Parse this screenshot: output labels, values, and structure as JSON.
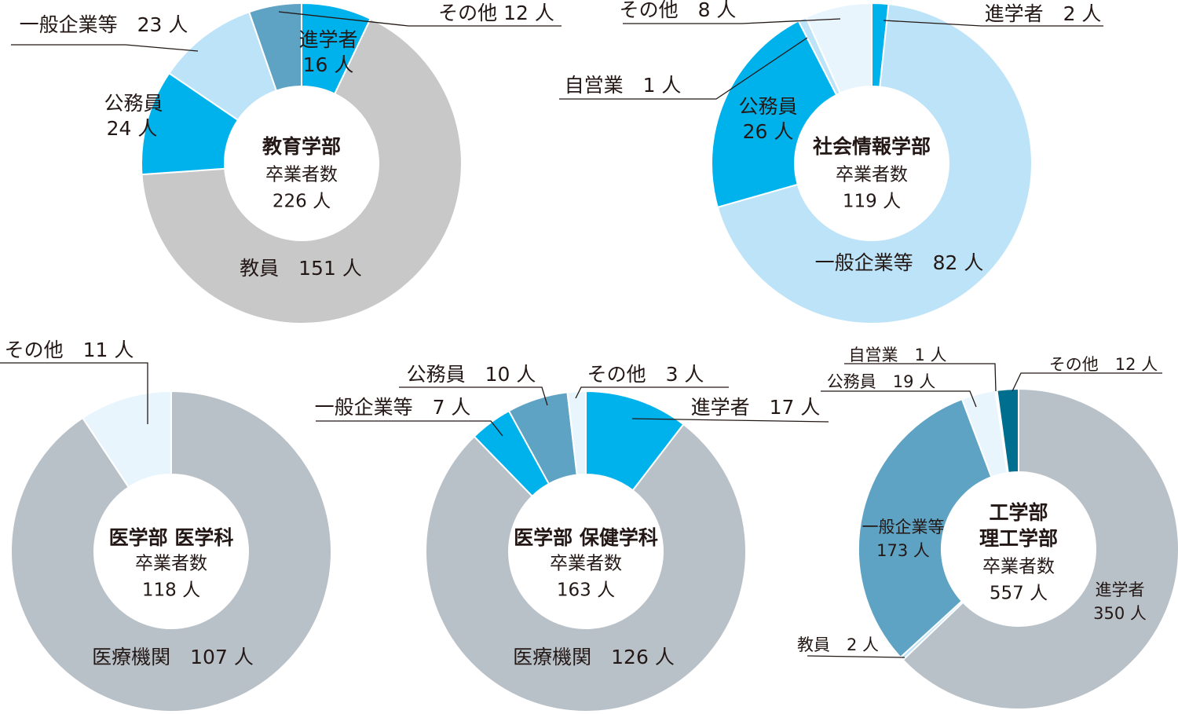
{
  "unit": "人",
  "colors": {
    "gray": "#c8c8c8",
    "slate": "#b9c1c8",
    "lightblue": "#bde3f8",
    "paleblue": "#e9f5fd",
    "cyan": "#00b2ec",
    "steel": "#5fa3c4",
    "teal": "#006e8e"
  },
  "chart_data": [
    {
      "type": "pie",
      "title": "教育学部",
      "subtitle": "卒業者数",
      "total_text": "226 人",
      "slices": [
        {
          "category": "進学者",
          "value": 16,
          "label_lines": [
            "進学者",
            "16 人"
          ],
          "color": "cyan"
        },
        {
          "category": "教員",
          "value": 151,
          "label_lines": [
            "教員　151 人"
          ],
          "color": "gray"
        },
        {
          "category": "公務員",
          "value": 24,
          "label_lines": [
            "公務員",
            "24 人"
          ],
          "color": "cyan"
        },
        {
          "category": "一般企業等",
          "value": 23,
          "label_lines": [
            "一般企業等　23 人"
          ],
          "color": "lightblue"
        },
        {
          "category": "その他",
          "value": 12,
          "label_lines": [
            "その他 12 人"
          ],
          "color": "steel"
        }
      ]
    },
    {
      "type": "pie",
      "title": "社会情報学部",
      "subtitle": "卒業者数",
      "total_text": "119 人",
      "slices": [
        {
          "category": "進学者",
          "value": 2,
          "label_lines": [
            "進学者　2 人"
          ],
          "color": "cyan"
        },
        {
          "category": "一般企業等",
          "value": 82,
          "label_lines": [
            "一般企業等　82 人"
          ],
          "color": "lightblue"
        },
        {
          "category": "公務員",
          "value": 26,
          "label_lines": [
            "公務員",
            "26 人"
          ],
          "color": "cyan"
        },
        {
          "category": "自営業",
          "value": 1,
          "label_lines": [
            "自営業　1 人"
          ],
          "color": "lightblue"
        },
        {
          "category": "その他",
          "value": 8,
          "label_lines": [
            "その他　8 人"
          ],
          "color": "paleblue"
        }
      ]
    },
    {
      "type": "pie",
      "title": "医学部 医学科",
      "subtitle": "卒業者数",
      "total_text": "118 人",
      "slices": [
        {
          "category": "医療機関",
          "value": 107,
          "label_lines": [
            "医療機関　107 人"
          ],
          "color": "slate"
        },
        {
          "category": "その他",
          "value": 11,
          "label_lines": [
            "その他　11 人"
          ],
          "color": "paleblue"
        }
      ]
    },
    {
      "type": "pie",
      "title": "医学部 保健学科",
      "subtitle": "卒業者数",
      "total_text": "163 人",
      "slices": [
        {
          "category": "進学者",
          "value": 17,
          "label_lines": [
            "進学者　17 人"
          ],
          "color": "cyan"
        },
        {
          "category": "医療機関",
          "value": 126,
          "label_lines": [
            "医療機関　126 人"
          ],
          "color": "slate"
        },
        {
          "category": "一般企業等",
          "value": 7,
          "label_lines": [
            "一般企業等　7 人"
          ],
          "color": "cyan"
        },
        {
          "category": "公務員",
          "value": 10,
          "label_lines": [
            "公務員　10 人"
          ],
          "color": "steel"
        },
        {
          "category": "その他",
          "value": 3,
          "label_lines": [
            "その他　3 人"
          ],
          "color": "paleblue"
        }
      ]
    },
    {
      "type": "pie",
      "title": "工学部\n理工学部",
      "subtitle": "卒業者数",
      "total_text": "557 人",
      "slices": [
        {
          "category": "進学者",
          "value": 350,
          "label_lines": [
            "進学者",
            "350 人"
          ],
          "color": "slate"
        },
        {
          "category": "教員",
          "value": 2,
          "label_lines": [
            "教員　2 人"
          ],
          "color": "lightblue"
        },
        {
          "category": "一般企業等",
          "value": 173,
          "label_lines": [
            "一般企業等",
            "173 人"
          ],
          "color": "steel"
        },
        {
          "category": "公務員",
          "value": 19,
          "label_lines": [
            "公務員　19 人"
          ],
          "color": "paleblue"
        },
        {
          "category": "自営業",
          "value": 1,
          "label_lines": [
            "自営業　1 人"
          ],
          "color": "lightblue"
        },
        {
          "category": "その他",
          "value": 12,
          "label_lines": [
            "その他　12 人"
          ],
          "color": "teal"
        }
      ]
    }
  ]
}
